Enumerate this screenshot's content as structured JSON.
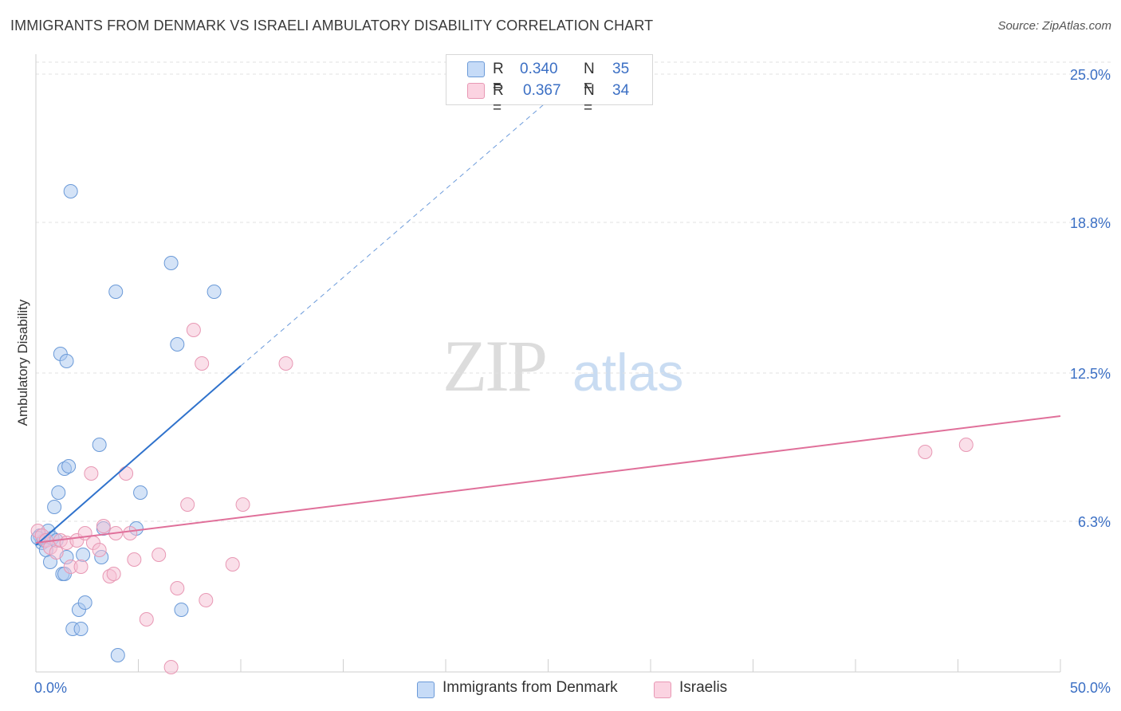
{
  "header": {
    "title": "IMMIGRANTS FROM DENMARK VS ISRAELI AMBULATORY DISABILITY CORRELATION CHART",
    "source": "Source: ZipAtlas.com"
  },
  "watermark": {
    "zip": "ZIP",
    "atlas": "atlas"
  },
  "legend": {
    "rows": [
      {
        "r_label": "R =",
        "r_value": "0.340",
        "n_label": "N =",
        "n_value": "35"
      },
      {
        "r_label": "R =",
        "r_value": "0.367",
        "n_label": "N =",
        "n_value": "34"
      }
    ]
  },
  "bottom_legend": {
    "series1": "Immigrants from Denmark",
    "series2": "Israelis"
  },
  "colors": {
    "blue_fill": "#aac8f0",
    "blue_stroke": "#6b9ad8",
    "blue_line": "#2f72cc",
    "pink_fill": "#f6c0d3",
    "pink_stroke": "#e898b4",
    "pink_line": "#e0709a",
    "tick_text": "#3b6fc4",
    "grid": "#e2e2e2"
  },
  "chart_data": {
    "type": "scatter",
    "title": "IMMIGRANTS FROM DENMARK VS ISRAELI AMBULATORY DISABILITY CORRELATION CHART",
    "xlabel": "",
    "ylabel": "Ambulatory Disability",
    "xlim": [
      0,
      50
    ],
    "ylim": [
      0,
      25.5
    ],
    "x_tick_labels": [
      "0.0%",
      "50.0%"
    ],
    "y_ticks": [
      6.3,
      12.5,
      18.8,
      25.0
    ],
    "y_tick_labels": [
      "6.3%",
      "12.5%",
      "18.8%",
      "25.0%"
    ],
    "grid": true,
    "series": [
      {
        "name": "Immigrants from Denmark",
        "color": "blue",
        "points": [
          [
            0.2,
            5.7
          ],
          [
            0.3,
            5.4
          ],
          [
            0.4,
            5.5
          ],
          [
            0.5,
            5.1
          ],
          [
            0.6,
            5.9
          ],
          [
            0.7,
            4.6
          ],
          [
            0.8,
            5.6
          ],
          [
            0.9,
            6.9
          ],
          [
            1.0,
            5.5
          ],
          [
            1.1,
            7.5
          ],
          [
            1.2,
            13.3
          ],
          [
            1.3,
            4.1
          ],
          [
            1.4,
            4.1
          ],
          [
            1.5,
            4.8
          ],
          [
            1.4,
            8.5
          ],
          [
            1.5,
            13.0
          ],
          [
            1.6,
            8.6
          ],
          [
            1.7,
            20.1
          ],
          [
            1.8,
            1.8
          ],
          [
            2.1,
            2.6
          ],
          [
            2.2,
            1.8
          ],
          [
            2.3,
            4.9
          ],
          [
            2.4,
            2.9
          ],
          [
            3.1,
            9.5
          ],
          [
            3.2,
            4.8
          ],
          [
            3.3,
            6.0
          ],
          [
            3.9,
            15.9
          ],
          [
            4.0,
            0.7
          ],
          [
            4.9,
            6.0
          ],
          [
            5.1,
            7.5
          ],
          [
            6.6,
            17.1
          ],
          [
            6.9,
            13.7
          ],
          [
            7.1,
            2.6
          ],
          [
            8.7,
            15.9
          ],
          [
            0.1,
            5.6
          ]
        ],
        "trend": {
          "x1": 0.0,
          "y1": 5.3,
          "x2": 10.0,
          "y2": 12.8,
          "dashed_to": {
            "x": 26.5,
            "y": 25.0
          }
        }
      },
      {
        "name": "Israelis",
        "color": "pink",
        "points": [
          [
            0.1,
            5.9
          ],
          [
            0.3,
            5.7
          ],
          [
            0.5,
            5.5
          ],
          [
            0.7,
            5.2
          ],
          [
            1.0,
            5.0
          ],
          [
            1.2,
            5.5
          ],
          [
            1.5,
            5.4
          ],
          [
            1.7,
            4.4
          ],
          [
            2.0,
            5.5
          ],
          [
            2.2,
            4.4
          ],
          [
            2.4,
            5.8
          ],
          [
            2.7,
            8.3
          ],
          [
            2.8,
            5.4
          ],
          [
            3.1,
            5.1
          ],
          [
            3.3,
            6.1
          ],
          [
            3.6,
            4.0
          ],
          [
            3.8,
            4.1
          ],
          [
            3.9,
            5.8
          ],
          [
            4.4,
            8.3
          ],
          [
            4.6,
            5.8
          ],
          [
            4.8,
            4.7
          ],
          [
            5.4,
            2.2
          ],
          [
            6.0,
            4.9
          ],
          [
            6.6,
            0.2
          ],
          [
            6.9,
            3.5
          ],
          [
            7.4,
            7.0
          ],
          [
            7.7,
            14.3
          ],
          [
            8.1,
            12.9
          ],
          [
            8.3,
            3.0
          ],
          [
            9.6,
            4.5
          ],
          [
            10.1,
            7.0
          ],
          [
            12.2,
            12.9
          ],
          [
            43.4,
            9.2
          ],
          [
            45.4,
            9.5
          ]
        ],
        "trend": {
          "x1": 0.0,
          "y1": 5.4,
          "x2": 50.0,
          "y2": 10.7
        }
      }
    ]
  }
}
